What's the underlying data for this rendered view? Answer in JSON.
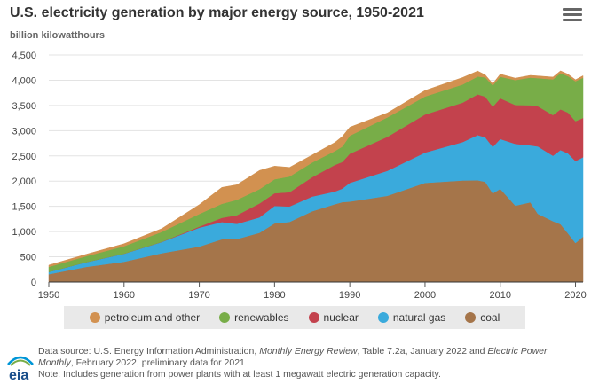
{
  "header": {
    "title": "U.S. electricity generation by major energy source, 1950-2021",
    "unit": "billion kilowatthours"
  },
  "menu_icon": "hamburger-menu-icon",
  "chart_data": {
    "type": "area",
    "stacked": true,
    "title": "U.S. electricity generation by major energy source, 1950-2021",
    "ylabel": "billion kilowatthours",
    "xlabel": "",
    "xlim": [
      1950,
      2021
    ],
    "ylim": [
      0,
      4500
    ],
    "y_ticks": [
      "0",
      "500",
      "1,000",
      "1,500",
      "2,000",
      "2,500",
      "3,000",
      "3,500",
      "4,000",
      "4,500"
    ],
    "x_ticks": [
      "1950",
      "1960",
      "1970",
      "1980",
      "1990",
      "2000",
      "2010",
      "2020"
    ],
    "grid": "horizontal",
    "legend_position": "bottom",
    "x": [
      1950,
      1955,
      1960,
      1965,
      1970,
      1973,
      1975,
      1978,
      1980,
      1982,
      1985,
      1988,
      1989,
      1990,
      1995,
      2000,
      2005,
      2007,
      2008,
      2009,
      2010,
      2012,
      2014,
      2015,
      2017,
      2018,
      2019,
      2020,
      2021
    ],
    "series": [
      {
        "name": "coal",
        "color": "#a5754a",
        "values": [
          155,
          301,
          403,
          571,
          704,
          848,
          853,
          976,
          1162,
          1192,
          1402,
          1541,
          1584,
          1594,
          1709,
          1966,
          2013,
          2016,
          1986,
          1756,
          1847,
          1514,
          1581,
          1352,
          1206,
          1146,
          965,
          774,
          899
        ]
      },
      {
        "name": "natural gas",
        "color": "#3aaadc",
        "values": [
          45,
          95,
          158,
          222,
          373,
          341,
          300,
          305,
          346,
          305,
          292,
          252,
          267,
          372,
          496,
          601,
          761,
          897,
          883,
          921,
          988,
          1225,
          1127,
          1335,
          1297,
          1469,
          1586,
          1624,
          1575
        ]
      },
      {
        "name": "nuclear",
        "color": "#c3424d",
        "values": [
          0,
          0,
          1,
          4,
          22,
          83,
          173,
          276,
          251,
          283,
          384,
          527,
          529,
          577,
          673,
          754,
          782,
          806,
          806,
          799,
          807,
          769,
          797,
          797,
          805,
          807,
          809,
          790,
          778
        ]
      },
      {
        "name": "renewables",
        "color": "#78ad48",
        "values": [
          101,
          118,
          149,
          197,
          251,
          278,
          303,
          284,
          279,
          312,
          291,
          275,
          305,
          357,
          384,
          356,
          358,
          353,
          382,
          420,
          427,
          494,
          546,
          557,
          709,
          718,
          720,
          791,
          796
        ]
      },
      {
        "name": "petroleum and other",
        "color": "#d29150",
        "values": [
          34,
          38,
          49,
          65,
          185,
          325,
          300,
          370,
          260,
          180,
          150,
          170,
          200,
          170,
          90,
          120,
          140,
          110,
          50,
          35,
          52,
          40,
          45,
          45,
          45,
          45,
          40,
          30,
          40
        ]
      }
    ]
  },
  "legend": {
    "items": [
      {
        "label": "petroleum and other",
        "color": "#d29150"
      },
      {
        "label": "renewables",
        "color": "#78ad48"
      },
      {
        "label": "nuclear",
        "color": "#c3424d"
      },
      {
        "label": "natural gas",
        "color": "#3aaadc"
      },
      {
        "label": "coal",
        "color": "#a5754a"
      }
    ]
  },
  "footer": {
    "logo_text": "eia",
    "source_prefix": "Data source: U.S. Energy Information Administration, ",
    "source_pub1": "Monthly Energy Review",
    "source_mid": ", Table 7.2a, January 2022 and ",
    "source_pub2": "Electric Power Monthly",
    "source_suffix": ", February 2022, preliminary data for 2021",
    "note": "Note: Includes generation from power plants with at least 1 megawatt electric generation capacity."
  }
}
